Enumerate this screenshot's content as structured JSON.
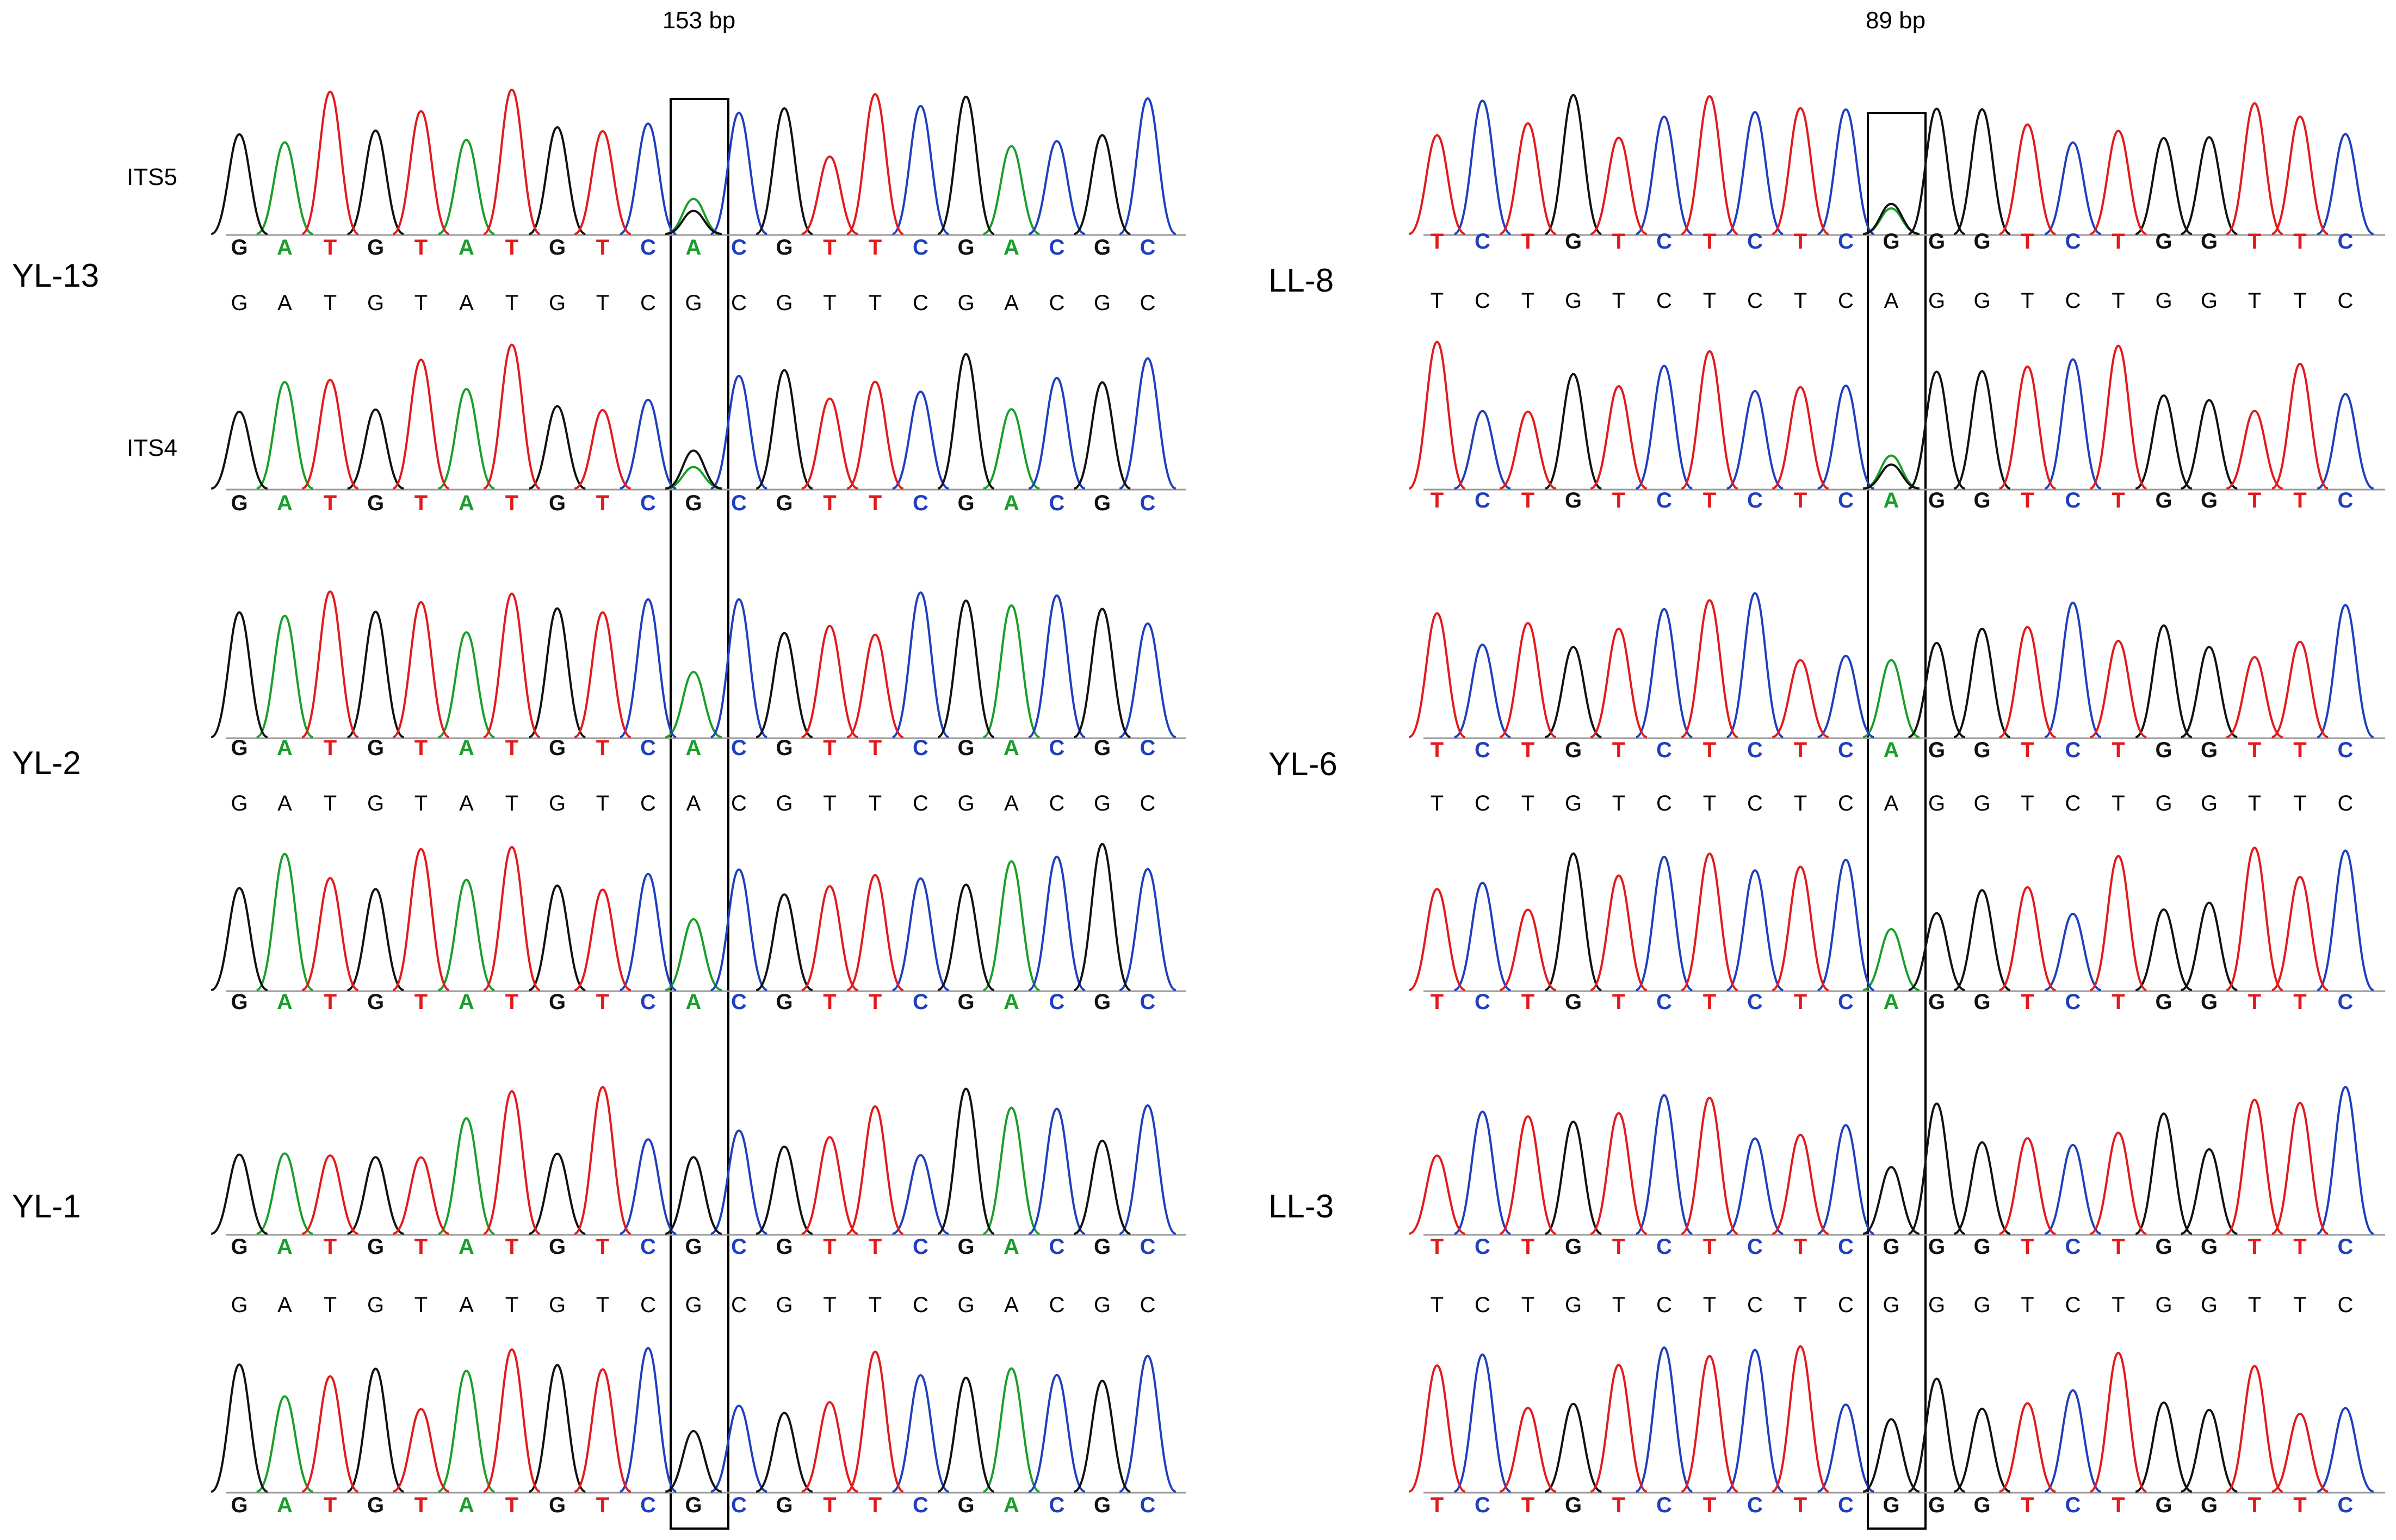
{
  "colors": {
    "A": "#1a9e2a",
    "C": "#1f3fbf",
    "G": "#111111",
    "T": "#e31a1c"
  },
  "left": {
    "site": "153 bp",
    "seq": "GATGTATGTCACGTTCGACGC",
    "samples": [
      {
        "name": "YL-13",
        "fwd": {
          "primer": "ITS5",
          "site": "A",
          "het": true
        },
        "cons": "G",
        "rev": {
          "primer": "ITS4",
          "site": "G",
          "het": true
        }
      },
      {
        "name": "YL-2",
        "fwd": {
          "primer": "",
          "site": "A",
          "het": false
        },
        "cons": "A",
        "rev": {
          "primer": "",
          "site": "A",
          "het": false
        }
      },
      {
        "name": "YL-1",
        "fwd": {
          "primer": "",
          "site": "G",
          "het": false
        },
        "cons": "G",
        "rev": {
          "primer": "",
          "site": "G",
          "het": false
        }
      }
    ]
  },
  "right": {
    "site": "89 bp",
    "seq": "TCTGTCTCTCAGGTCTGGTTC",
    "samples": [
      {
        "name": "LL-8",
        "fwd": {
          "primer": "",
          "site": "G",
          "het": true
        },
        "cons": "A",
        "rev": {
          "primer": "",
          "site": "A",
          "het": true
        }
      },
      {
        "name": "YL-6",
        "fwd": {
          "primer": "",
          "site": "A",
          "het": false
        },
        "cons": "A",
        "rev": {
          "primer": "",
          "site": "A",
          "het": false
        }
      },
      {
        "name": "LL-3",
        "fwd": {
          "primer": "",
          "site": "G",
          "het": false
        },
        "cons": "G",
        "rev": {
          "primer": "",
          "site": "G",
          "het": false
        }
      }
    ]
  }
}
